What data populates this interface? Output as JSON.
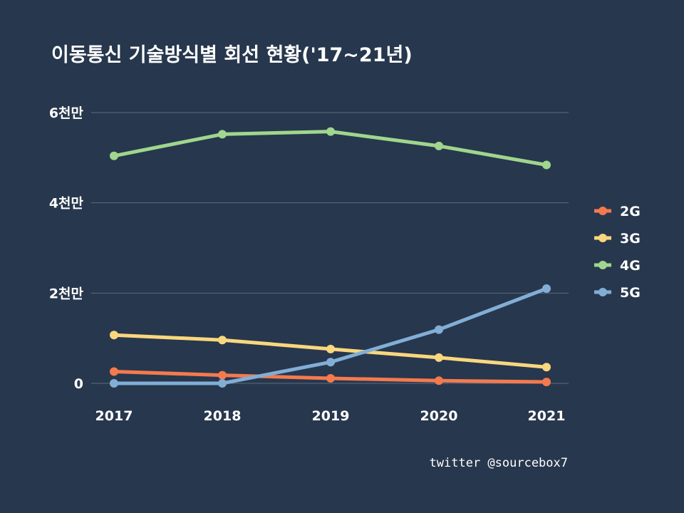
{
  "chart_data": {
    "type": "line",
    "title": "이동통신 기술방식별 회선 현황('17~21년)",
    "categories": [
      "2017",
      "2018",
      "2019",
      "2020",
      "2021"
    ],
    "ylim": [
      0,
      60000000
    ],
    "yticks": [
      {
        "value": 0,
        "label": "0"
      },
      {
        "value": 20000000,
        "label": "2천만"
      },
      {
        "value": 40000000,
        "label": "4천만"
      },
      {
        "value": 60000000,
        "label": "6천만"
      }
    ],
    "grid": true,
    "legend_position": "right",
    "series": [
      {
        "name": "2G",
        "color": "#f47a4e",
        "values": [
          2600000,
          1800000,
          1100000,
          600000,
          300000
        ]
      },
      {
        "name": "3G",
        "color": "#f9d77e",
        "values": [
          10700000,
          9600000,
          7600000,
          5700000,
          3600000
        ]
      },
      {
        "name": "4G",
        "color": "#a0d68d",
        "values": [
          50400000,
          55200000,
          55800000,
          52600000,
          48400000
        ]
      },
      {
        "name": "5G",
        "color": "#82aed6",
        "values": [
          0,
          0,
          4700000,
          11900000,
          21000000
        ]
      }
    ]
  },
  "credit": "twitter @sourcebox7"
}
